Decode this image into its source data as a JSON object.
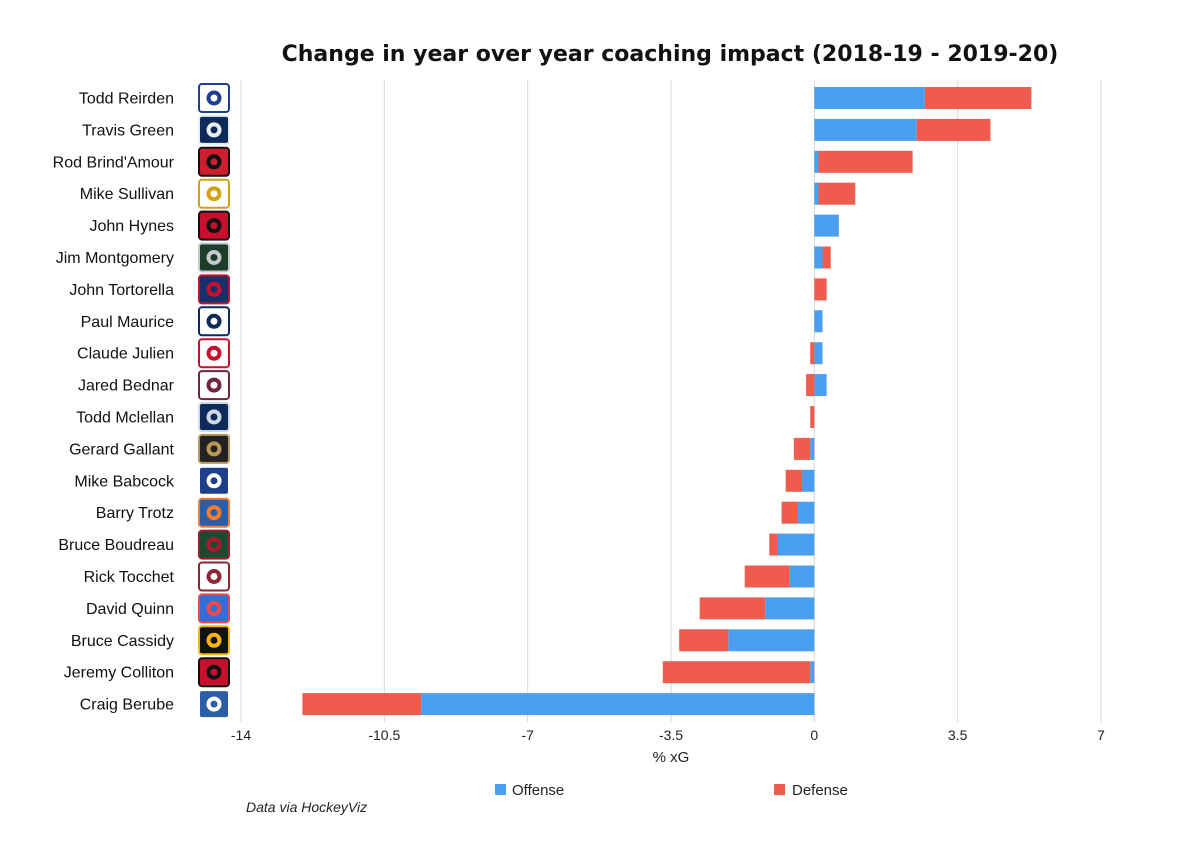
{
  "chart_data": {
    "type": "bar",
    "orientation": "horizontal",
    "stacked": true,
    "title": "Change in year over year coaching impact (2018-19 - 2019-20)",
    "xlabel": "% xG",
    "ylabel": "",
    "xlim": [
      -14,
      7
    ],
    "xticks": [
      -14,
      -10.5,
      -7,
      -3.5,
      0,
      3.5,
      7
    ],
    "xtick_labels": [
      "-14",
      "-10.5",
      "-7",
      "-3.5",
      "0",
      "3.5",
      "7"
    ],
    "grid": "vertical",
    "legend_position": "bottom",
    "categories": [
      "Todd Reirden",
      "Travis Green",
      "Rod Brind'Amour",
      "Mike Sullivan",
      "John Hynes",
      "Jim Montgomery",
      "John Tortorella",
      "Paul Maurice",
      "Claude Julien",
      "Jared Bednar",
      "Todd Mclellan",
      "Gerard Gallant",
      "Mike Babcock",
      "Barry Trotz",
      "Bruce Boudreau",
      "Rick Tocchet",
      "David Quinn",
      "Bruce Cassidy",
      "Jeremy Colliton",
      "Craig Berube"
    ],
    "series": [
      {
        "name": "Offense",
        "color": "#4a9ff0",
        "values": [
          2.7,
          2.5,
          0.1,
          0.1,
          0.6,
          0.2,
          0.0,
          0.2,
          0.2,
          0.3,
          0.0,
          -0.1,
          -0.3,
          -0.4,
          -0.9,
          -0.6,
          -1.2,
          -2.1,
          -0.1,
          -9.6
        ]
      },
      {
        "name": "Defense",
        "color": "#ef5b4c",
        "values": [
          2.6,
          1.8,
          2.3,
          0.9,
          0.0,
          0.2,
          0.3,
          0.0,
          -0.1,
          -0.2,
          -0.1,
          -0.4,
          -0.4,
          -0.4,
          -0.2,
          -1.1,
          -1.6,
          -1.2,
          -3.6,
          -2.9
        ]
      }
    ],
    "team_logos": [
      "capitals-logo-icon",
      "canucks-logo-icon",
      "hurricanes-logo-icon",
      "penguins-logo-icon",
      "devils-logo-icon",
      "stars-logo-icon",
      "blue-jackets-logo-icon",
      "jets-logo-icon",
      "canadiens-logo-icon",
      "avalanche-logo-icon",
      "oilers-logo-icon",
      "golden-knights-logo-icon",
      "maple-leafs-logo-icon",
      "islanders-logo-icon",
      "wild-logo-icon",
      "coyotes-logo-icon",
      "rangers-logo-icon",
      "bruins-logo-icon",
      "blackhawks-logo-icon",
      "blues-logo-icon"
    ],
    "logo_colors": [
      [
        "#ffffff",
        "#1f3f8c"
      ],
      [
        "#0e2a5a",
        "#e8eef5"
      ],
      [
        "#cc1f2d",
        "#111111"
      ],
      [
        "#ffffff",
        "#d4a017"
      ],
      [
        "#c8102e",
        "#111111"
      ],
      [
        "#1d3d2a",
        "#c4c9cc"
      ],
      [
        "#16306b",
        "#c8102e"
      ],
      [
        "#ffffff",
        "#0e2a5a"
      ],
      [
        "#ffffff",
        "#c8102e"
      ],
      [
        "#ffffff",
        "#6f263d"
      ],
      [
        "#0e2a5a",
        "#cfd8e3"
      ],
      [
        "#222222",
        "#b9975b"
      ],
      [
        "#1d3f8c",
        "#ffffff"
      ],
      [
        "#2a5ea8",
        "#f47d30"
      ],
      [
        "#1d4a2e",
        "#a6192e"
      ],
      [
        "#ffffff",
        "#8c2633"
      ],
      [
        "#2f6fd6",
        "#ef4a4a"
      ],
      [
        "#111111",
        "#f5b50f"
      ],
      [
        "#c8102e",
        "#111111"
      ],
      [
        "#2a5ea8",
        "#ffffff"
      ]
    ],
    "source": "Data via HockeyViz"
  }
}
